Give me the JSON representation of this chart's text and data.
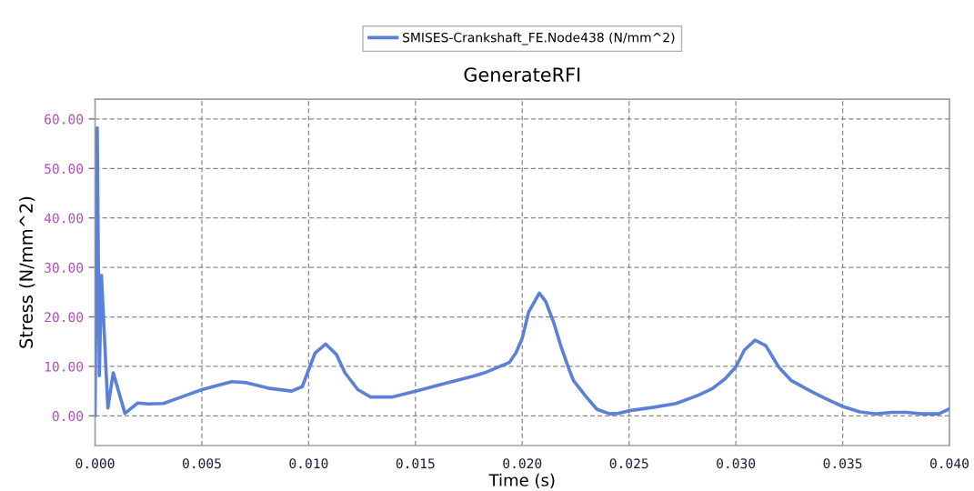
{
  "chart_data": {
    "type": "line",
    "title": "GenerateRFI",
    "xlabel": "Time (s)",
    "ylabel": "Stress (N/mm^2)",
    "series": [
      {
        "name": "SMISES-Crankshaft_FE.Node438 (N/mm^2)",
        "color": "#5b80d8",
        "x": [
          0,
          0.0001,
          0.0002,
          0.0003,
          0.0006,
          0.00085,
          0.0014,
          0.002,
          0.0025,
          0.0032,
          0.0041,
          0.005,
          0.0064,
          0.0071,
          0.0081,
          0.0092,
          0.0097,
          0.01,
          0.0103,
          0.0108,
          0.0113,
          0.0117,
          0.0123,
          0.0129,
          0.0139,
          0.015,
          0.0165,
          0.0177,
          0.0183,
          0.0194,
          0.0197,
          0.02,
          0.0203,
          0.0208,
          0.0211,
          0.0215,
          0.0218,
          0.0222,
          0.0224,
          0.023,
          0.0235,
          0.0241,
          0.0245,
          0.0251,
          0.0261,
          0.0272,
          0.0282,
          0.0289,
          0.0295,
          0.03,
          0.0304,
          0.0309,
          0.0314,
          0.032,
          0.0326,
          0.0335,
          0.0342,
          0.035,
          0.0358,
          0.0366,
          0.0373,
          0.038,
          0.0387,
          0.0395,
          0.04
        ],
        "values": [
          0,
          58.2,
          8.1,
          28.4,
          1.6,
          8.7,
          0.5,
          2.6,
          2.4,
          2.5,
          3.9,
          5.3,
          6.9,
          6.7,
          5.6,
          5.0,
          5.9,
          9.3,
          12.7,
          14.5,
          12.4,
          8.7,
          5.3,
          3.8,
          3.8,
          5.0,
          6.7,
          8.0,
          8.8,
          10.8,
          12.7,
          15.7,
          21.0,
          24.8,
          23.1,
          18.5,
          14.2,
          9.3,
          7.1,
          3.8,
          1.3,
          0.4,
          0.5,
          1.1,
          1.7,
          2.5,
          4.1,
          5.5,
          7.5,
          9.9,
          13.3,
          15.3,
          14.2,
          9.9,
          7.1,
          5.0,
          3.5,
          1.9,
          0.8,
          0.4,
          0.7,
          0.7,
          0.4,
          0.4,
          1.4
        ]
      }
    ],
    "xlim": [
      0,
      0.04
    ],
    "xticks": [
      {
        "value": 0,
        "label": "0.000"
      },
      {
        "value": 0.005,
        "label": "0.005"
      },
      {
        "value": 0.01,
        "label": "0.010"
      },
      {
        "value": 0.015,
        "label": "0.015"
      },
      {
        "value": 0.02,
        "label": "0.020"
      },
      {
        "value": 0.025,
        "label": "0.025"
      },
      {
        "value": 0.03,
        "label": "0.030"
      },
      {
        "value": 0.035,
        "label": "0.035"
      },
      {
        "value": 0.04,
        "label": "0.040"
      }
    ],
    "ylim": [
      -6,
      64
    ],
    "yticks": [
      {
        "value": 0,
        "label": "0.00"
      },
      {
        "value": 10,
        "label": "10.00"
      },
      {
        "value": 20,
        "label": "20.00"
      },
      {
        "value": 30,
        "label": "30.00"
      },
      {
        "value": 40,
        "label": "40.00"
      },
      {
        "value": 50,
        "label": "50.00"
      },
      {
        "value": 60,
        "label": "60.00"
      }
    ],
    "grid": true,
    "legend": "top",
    "marker": "none",
    "line_style": "solid"
  }
}
